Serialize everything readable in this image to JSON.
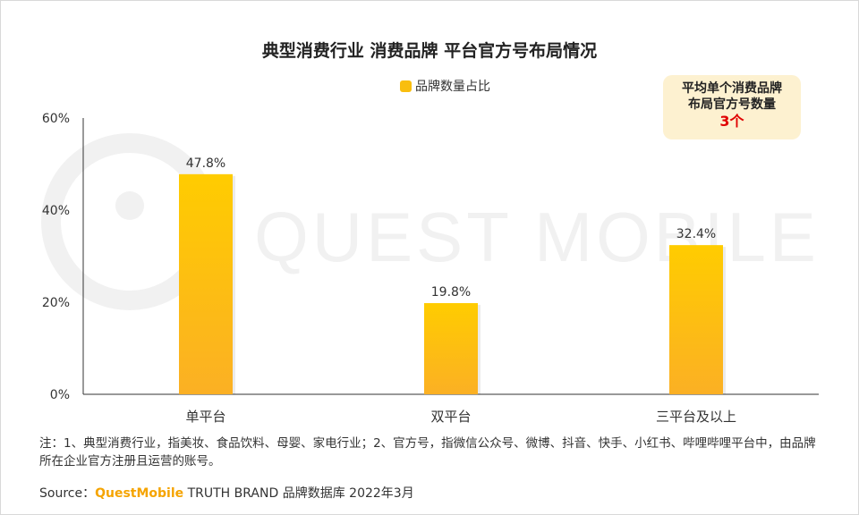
{
  "title": "典型消费行业 消费品牌 平台官方号布局情况",
  "legend": {
    "label": "品牌数量占比",
    "color": "#f9be0f"
  },
  "callout": {
    "line1": "平均单个消费品牌",
    "line2": "布局官方号数量",
    "value": "3个"
  },
  "watermark": "QUEST MOBILE",
  "note": "注：1、典型消费行业，指美妆、食品饮料、母婴、家电行业；2、官方号，指微信公众号、微博、抖音、快手、小红书、哔哩哔哩平台中，由品牌所在企业官方注册且运营的账号。",
  "source": {
    "prefix": "Source：",
    "brand": "QuestMobile",
    "rest": " TRUTH BRAND 品牌数据库 2022年3月"
  },
  "colors": {
    "bar_top": "#ffcc00",
    "bar_bottom": "#fbb024",
    "accent": "#e00000",
    "callout_bg": "#fdf1d0"
  },
  "chart_data": {
    "type": "bar",
    "categories": [
      "单平台",
      "双平台",
      "三平台及以上"
    ],
    "series": [
      {
        "name": "品牌数量占比",
        "values": [
          47.8,
          19.8,
          32.4
        ]
      }
    ],
    "data_labels": [
      "47.8%",
      "19.8%",
      "32.4%"
    ],
    "ylim": [
      0,
      60
    ],
    "yticks": [
      0,
      20,
      40,
      60
    ],
    "ytick_labels": [
      "0%",
      "20%",
      "40%",
      "60%"
    ],
    "xlabel": "",
    "ylabel": "",
    "grid": false,
    "legend_position": "top-center"
  }
}
